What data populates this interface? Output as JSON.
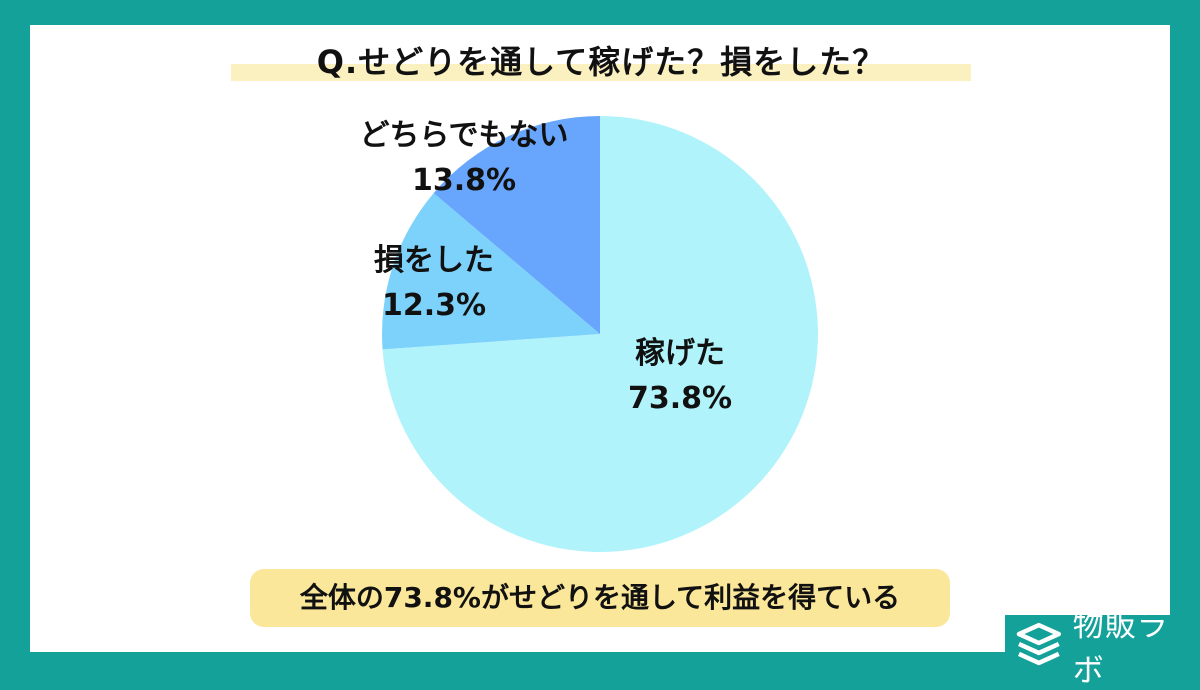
{
  "title": "Q.せどりを通して稼げた？損をした？",
  "summary": "全体の73.8%がせどりを通して利益を得ている",
  "brand": {
    "name": "物販ラボ",
    "logo_icon": "stacked-layers-icon"
  },
  "colors": {
    "frame": "#14a19a",
    "earned": "#b1f3fb",
    "lost": "#7dd2fb",
    "neither": "#67a6fc",
    "title_highlight": "#fbf1c0",
    "summary_bg": "#fbe79a"
  },
  "chart_data": {
    "type": "pie",
    "title": "Q.せどりを通して稼げた？損をした？",
    "slices": [
      {
        "label": "稼げた",
        "value": 73.8,
        "display": "73.8%",
        "color": "#b1f3fb"
      },
      {
        "label": "損をした",
        "value": 12.3,
        "display": "12.3%",
        "color": "#7dd2fb"
      },
      {
        "label": "どちらでもない",
        "value": 13.8,
        "display": "13.8%",
        "color": "#67a6fc"
      }
    ],
    "start": "12 o'clock",
    "direction": "clockwise"
  }
}
